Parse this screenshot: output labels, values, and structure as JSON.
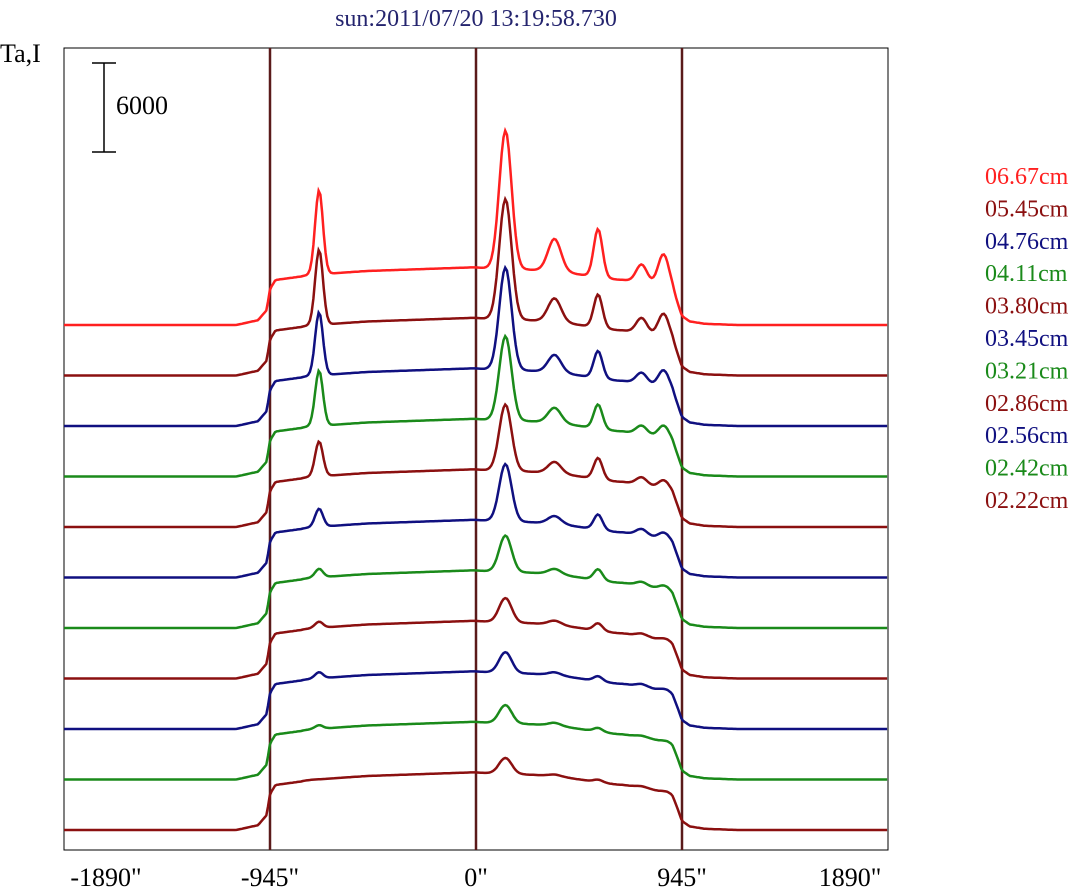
{
  "chart_data": {
    "type": "line",
    "title": "sun:2011/07/20 13:19:58.730",
    "ylabel": "Ta,I",
    "xlabel": "",
    "x_ticks": [
      "-1890\"",
      "-945\"",
      "0\"",
      "945\"",
      "1890\""
    ],
    "x_tick_values": [
      -1890,
      -945,
      0,
      945,
      1890
    ],
    "xlim": [
      -1890,
      1890
    ],
    "vlines": [
      -945,
      0,
      945
    ],
    "vline_color": "#5a1a1a",
    "scale_bar": {
      "value": 6000,
      "label": "6000"
    },
    "grid": false,
    "legend_position": "right",
    "series": [
      {
        "name": "06.67cm",
        "color": "#ff2020",
        "offset": 10
      },
      {
        "name": "05.45cm",
        "color": "#8b1010",
        "offset": 9
      },
      {
        "name": "04.76cm",
        "color": "#101080",
        "offset": 8
      },
      {
        "name": "04.11cm",
        "color": "#1a8a1a",
        "offset": 7
      },
      {
        "name": "03.80cm",
        "color": "#8b1010",
        "offset": 6
      },
      {
        "name": "03.45cm",
        "color": "#101080",
        "offset": 5
      },
      {
        "name": "03.21cm",
        "color": "#1a8a1a",
        "offset": 4
      },
      {
        "name": "02.86cm",
        "color": "#8b1010",
        "offset": 3
      },
      {
        "name": "02.56cm",
        "color": "#101080",
        "offset": 2
      },
      {
        "name": "02.42cm",
        "color": "#1a8a1a",
        "offset": 1
      },
      {
        "name": "02.22cm",
        "color": "#8b1010",
        "offset": 0
      }
    ],
    "profile_x": [
      -1890,
      -1400,
      -1100,
      -1000,
      -960,
      -945,
      -920,
      -880,
      -840,
      -800,
      -790,
      -770,
      -750,
      -700,
      -500,
      -100,
      -20,
      0,
      40,
      60,
      80,
      100,
      110,
      130,
      150,
      170,
      200,
      260,
      300,
      320,
      340,
      380,
      420,
      460,
      480,
      500,
      520,
      560,
      600,
      640,
      680,
      720,
      760,
      800,
      840,
      880,
      900,
      920,
      945,
      980,
      1050,
      1200,
      1400,
      1890
    ],
    "profile_shapes": {
      "quiet": [
        0,
        0,
        0,
        8,
        25,
        60,
        75,
        77,
        79,
        81,
        82,
        83,
        84,
        85,
        90,
        95,
        96,
        96,
        95,
        95,
        95,
        95,
        95,
        94,
        94,
        94,
        93,
        92,
        91,
        90,
        89,
        88,
        87,
        85,
        84,
        83,
        82,
        80,
        78,
        76,
        75,
        73,
        71,
        68,
        64,
        62,
        58,
        40,
        15,
        6,
        2,
        0,
        0,
        0
      ]
    },
    "peaks": [
      {
        "x": -720,
        "w": 18,
        "amp": [
          140,
          125,
          105,
          92,
          58,
          30,
          14,
          10,
          10,
          6,
          0
        ]
      },
      {
        "x": 135,
        "w": 28,
        "amp": [
          230,
          200,
          170,
          140,
          110,
          95,
          60,
          40,
          34,
          30,
          26
        ]
      },
      {
        "x": 360,
        "w": 30,
        "amp": [
          55,
          40,
          30,
          26,
          20,
          14,
          10,
          8,
          6,
          6,
          4
        ]
      },
      {
        "x": 560,
        "w": 20,
        "amp": [
          80,
          55,
          45,
          40,
          35,
          25,
          18,
          12,
          8,
          6,
          4
        ]
      },
      {
        "x": 760,
        "w": 25,
        "amp": [
          30,
          25,
          18,
          14,
          12,
          10,
          6,
          4,
          4,
          2,
          2
        ]
      },
      {
        "x": 860,
        "w": 25,
        "amp": [
          55,
          40,
          30,
          22,
          15,
          12,
          8,
          4,
          4,
          2,
          2
        ]
      }
    ]
  }
}
